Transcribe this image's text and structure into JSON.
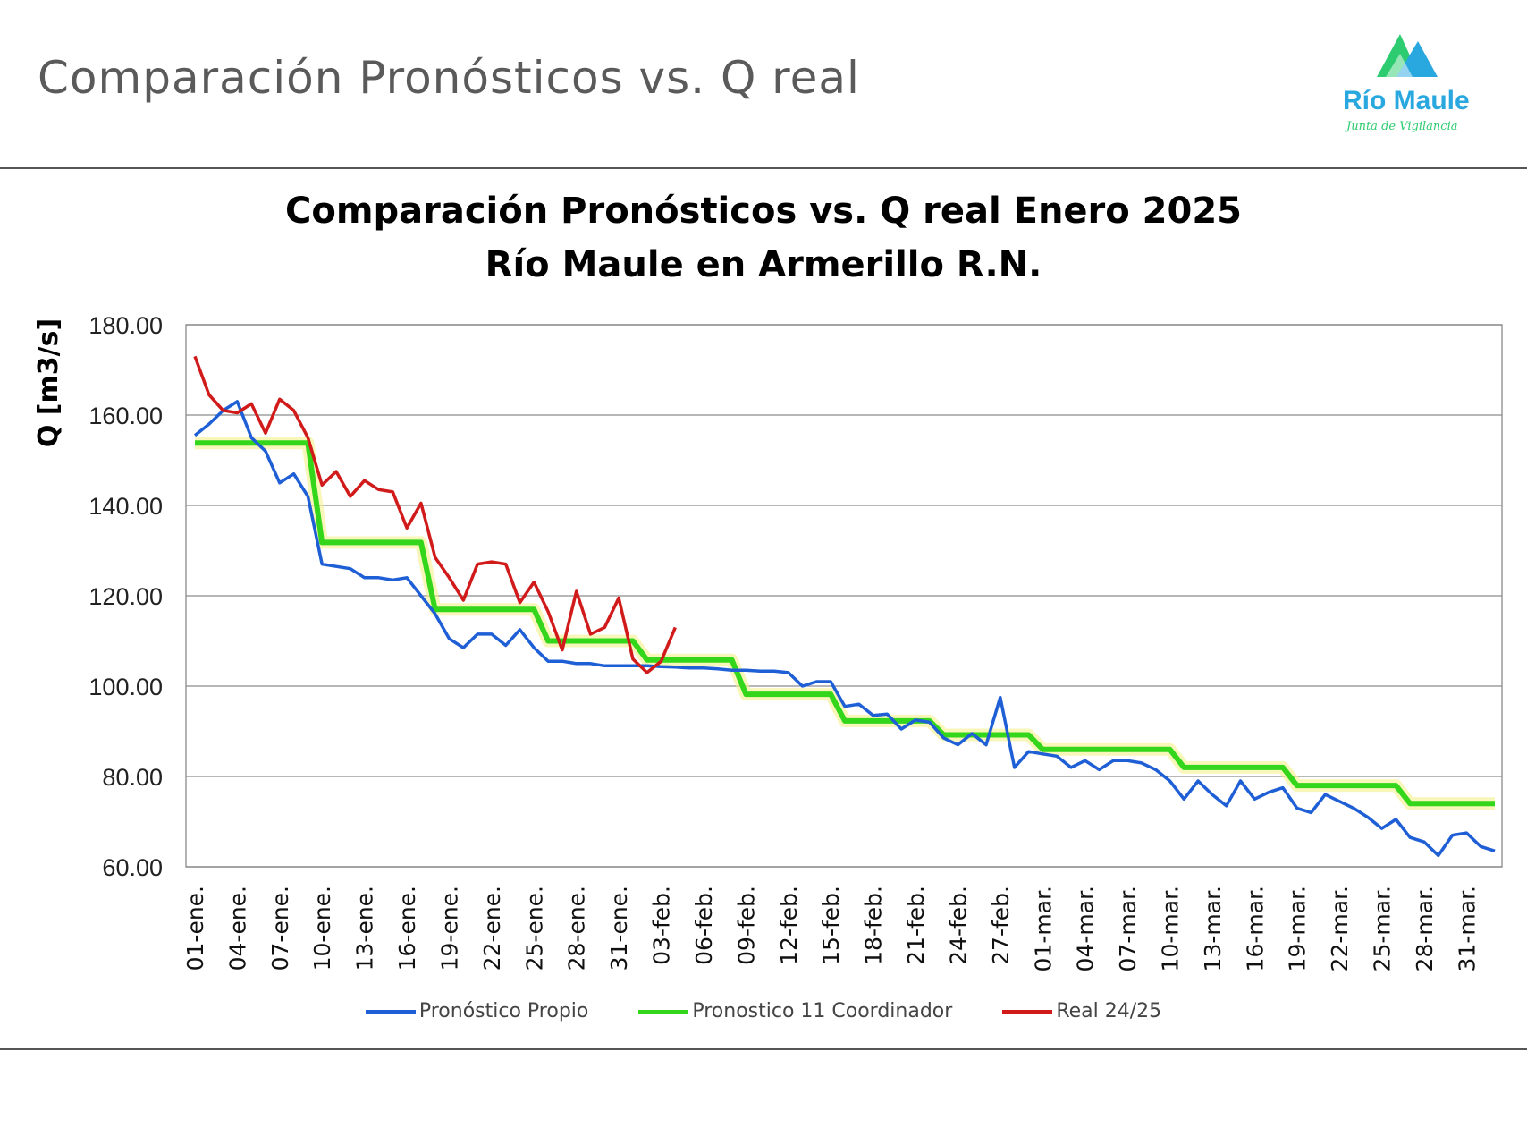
{
  "header": {
    "slide_title": "Comparación Pronósticos vs. Q real",
    "logo_name": "Río Maule",
    "logo_tagline": "Junta de Vigilancia",
    "logo_colors": [
      "#2ecc71",
      "#29a8e0"
    ]
  },
  "chart_data": {
    "type": "line",
    "title_line1": "Comparación Pronósticos vs. Q real Enero 2025",
    "title_line2": "Río Maule en Armerillo R.N.",
    "xlabel": "",
    "ylabel": "Q [m3/s]",
    "ylim": [
      60,
      180
    ],
    "y_ticks": [
      "60.00",
      "80.00",
      "100.00",
      "120.00",
      "140.00",
      "160.00",
      "180.00"
    ],
    "grid": true,
    "legend_position": "bottom",
    "x_labels": [
      "01-ene.",
      "04-ene.",
      "07-ene.",
      "10-ene.",
      "13-ene.",
      "16-ene.",
      "19-ene.",
      "22-ene.",
      "25-ene.",
      "28-ene.",
      "31-ene.",
      "03-feb.",
      "06-feb.",
      "09-feb.",
      "12-feb.",
      "15-feb.",
      "18-feb.",
      "21-feb.",
      "24-feb.",
      "27-feb.",
      "01-mar.",
      "04-mar.",
      "07-mar.",
      "10-mar.",
      "13-mar.",
      "16-mar.",
      "19-mar.",
      "22-mar.",
      "25-mar.",
      "28-mar.",
      "31-mar."
    ],
    "series": [
      {
        "name": "Pronóstico Propio",
        "color": "#1f5fd6",
        "values": [
          155.5,
          158,
          161,
          163,
          155,
          152,
          145,
          147,
          142,
          127,
          126.5,
          126,
          124,
          124,
          123.5,
          124,
          120,
          116,
          110.5,
          108.5,
          111.5,
          111.5,
          109,
          112.5,
          108.5,
          105.5,
          105.5,
          105,
          105,
          104.5,
          104.5,
          104.5,
          104.5,
          104.3,
          104.2,
          104,
          104,
          103.8,
          103.5,
          103.5,
          103.3,
          103.3,
          103,
          100,
          101,
          101,
          95.5,
          96,
          93.5,
          93.8,
          90.5,
          92.5,
          92,
          88.5,
          87,
          89.5,
          87,
          97.5,
          82,
          85.5,
          85,
          84.5,
          82,
          83.5,
          81.5,
          83.5,
          83.5,
          83,
          81.5,
          79,
          75,
          79,
          76,
          73.5,
          79,
          75,
          76.5,
          77.5,
          73,
          72,
          76,
          74.5,
          73,
          71,
          68.5,
          70.5,
          66.5,
          65.5,
          62.5,
          67,
          67.5,
          64.5,
          63.5
        ]
      },
      {
        "name": "Pronostico 11 Coordinador",
        "color": "#33d61a",
        "values": [
          153.8,
          153.8,
          153.8,
          153.8,
          153.8,
          153.8,
          153.8,
          153.8,
          153.8,
          131.8,
          131.8,
          131.8,
          131.8,
          131.8,
          131.8,
          131.8,
          131.8,
          117,
          117,
          117,
          117,
          117,
          117,
          117,
          117,
          110,
          110,
          110,
          110,
          110,
          110,
          110,
          105.8,
          105.8,
          105.8,
          105.8,
          105.8,
          105.8,
          105.8,
          98.2,
          98.2,
          98.2,
          98.2,
          98.2,
          98.2,
          98.2,
          92.3,
          92.3,
          92.3,
          92.3,
          92.3,
          92.3,
          92.3,
          89.2,
          89.2,
          89.2,
          89.2,
          89.2,
          89.2,
          89.2,
          86,
          86,
          86,
          86,
          86,
          86,
          86,
          86,
          86,
          86,
          82,
          82,
          82,
          82,
          82,
          82,
          82,
          82,
          78,
          78,
          78,
          78,
          78,
          78,
          78,
          78,
          74,
          74,
          74,
          74,
          74,
          74,
          74
        ]
      },
      {
        "name": "Real 24/25",
        "color": "#d11a1a",
        "values": [
          173,
          164.5,
          161,
          160.5,
          162.5,
          156,
          163.5,
          161,
          155,
          144.5,
          147.5,
          142,
          145.5,
          143.5,
          143,
          135,
          140.5,
          128.5,
          124,
          119,
          127,
          127.5,
          127,
          118.5,
          123,
          116.5,
          108,
          121,
          111.5,
          113,
          119.5,
          106,
          103,
          105.5,
          113
        ]
      }
    ]
  }
}
